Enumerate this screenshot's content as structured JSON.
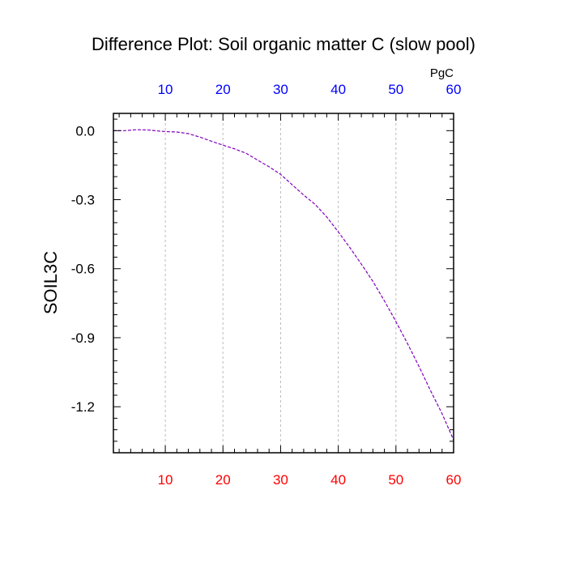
{
  "chart_data": {
    "type": "line",
    "title": "Difference Plot: Soil organic matter C (slow pool)",
    "ylabel": "SOIL3C",
    "top_axis_unit": "PgC",
    "xlim": [
      1,
      60
    ],
    "ylim": [
      -1.4,
      0.075
    ],
    "x_ticks_bottom": [
      10,
      20,
      30,
      40,
      50,
      60
    ],
    "x_ticks_top": [
      10,
      20,
      30,
      40,
      50,
      60
    ],
    "y_ticks": [
      0.0,
      -0.3,
      -0.6,
      -0.9,
      -1.2
    ],
    "y_tick_labels": [
      "0.0",
      "-0.3",
      "-0.6",
      "-0.9",
      "-1.2"
    ],
    "grid": "vertical-dashed",
    "colors": {
      "bottom_tick_labels": "#ff0000",
      "top_tick_labels": "#0000ff",
      "series_line": "#8000c0",
      "grid": "#bbbbbb",
      "axes": "#000000"
    },
    "series": [
      {
        "x": [
          1,
          3,
          5,
          7,
          9,
          10,
          12,
          14,
          16,
          18,
          20,
          22,
          24,
          26,
          28,
          30,
          32,
          34,
          36,
          38,
          40,
          42,
          44,
          46,
          48,
          50,
          52,
          54,
          56,
          58,
          60
        ],
        "y": [
          0.0,
          0.0,
          0.004,
          0.003,
          -0.002,
          -0.004,
          -0.006,
          -0.013,
          -0.028,
          -0.046,
          -0.063,
          -0.079,
          -0.098,
          -0.128,
          -0.157,
          -0.19,
          -0.235,
          -0.28,
          -0.321,
          -0.375,
          -0.44,
          -0.508,
          -0.58,
          -0.655,
          -0.74,
          -0.83,
          -0.925,
          -1.025,
          -1.13,
          -1.23,
          -1.345
        ],
        "style": "dashed"
      }
    ]
  }
}
